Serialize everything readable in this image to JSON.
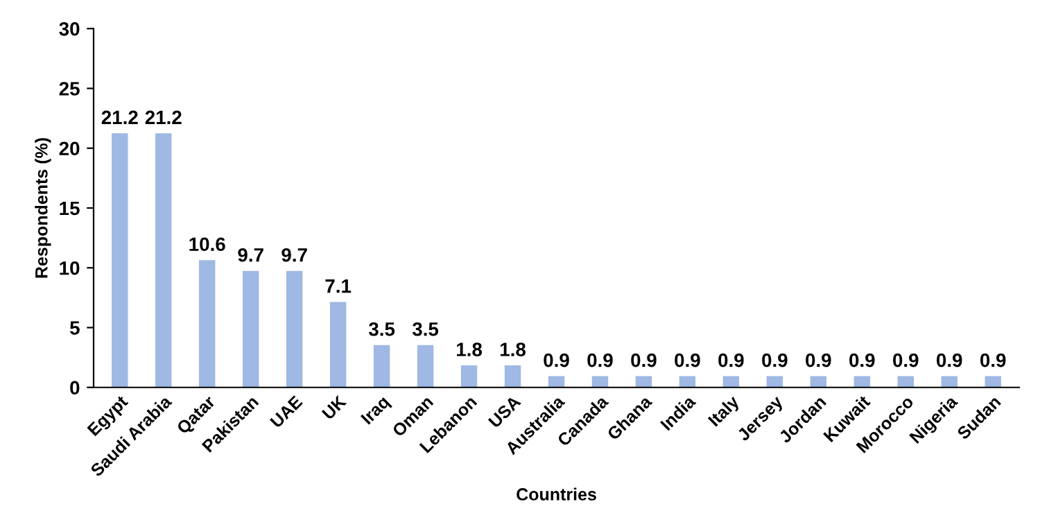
{
  "chart_data": {
    "type": "bar",
    "xlabel": "Countries",
    "ylabel": "Respondents (%)",
    "categories": [
      "Egypt",
      "Saudi Arabia",
      "Qatar",
      "Pakistan",
      "UAE",
      "UK",
      "Iraq",
      "Oman",
      "Lebanon",
      "USA",
      "Australia",
      "Canada",
      "Ghana",
      "India",
      "Italy",
      "Jersey",
      "Jordan",
      "Kuwait",
      "Morocco",
      "Nigeria",
      "Sudan"
    ],
    "values": [
      21.2,
      21.2,
      10.6,
      9.7,
      9.7,
      7.1,
      3.5,
      3.5,
      1.8,
      1.8,
      0.9,
      0.9,
      0.9,
      0.9,
      0.9,
      0.9,
      0.9,
      0.9,
      0.9,
      0.9,
      0.9
    ],
    "color": "#9fb8e4",
    "ylim": [
      0,
      30
    ],
    "yticks": [
      0,
      5,
      10,
      15,
      20,
      25,
      30
    ],
    "data_labels": true,
    "grid": false,
    "legend": false
  }
}
